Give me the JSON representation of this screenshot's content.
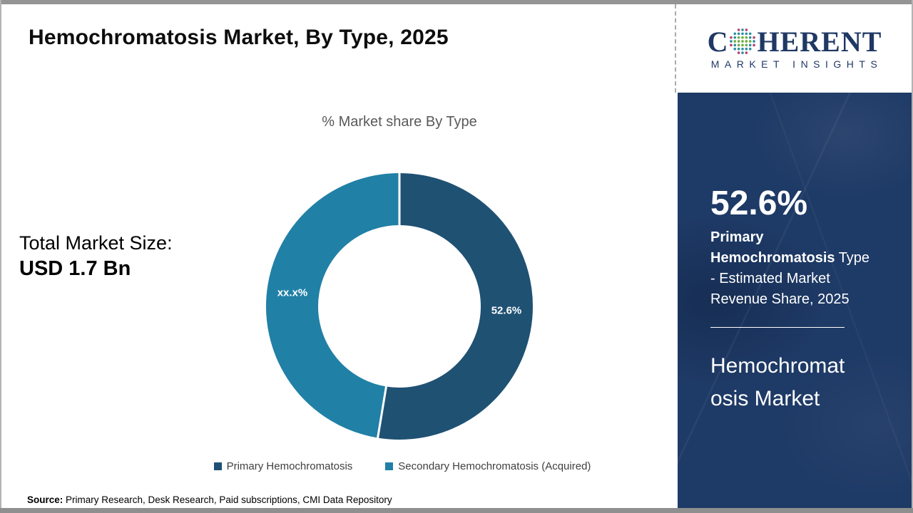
{
  "header": {
    "title": "Hemochromatosis Market, By Type, 2025",
    "logo": {
      "part1": "C",
      "part2": "HERENT",
      "subtitle": "MARKET INSIGHTS"
    }
  },
  "left_panel": {
    "total_label": "Total Market Size:",
    "total_value": "USD 1.7 Bn"
  },
  "chart_data": {
    "type": "pie",
    "variant": "donut",
    "title": "% Market share By Type",
    "start_angle_deg": 0,
    "direction": "clockwise",
    "legend_position": "bottom",
    "slices": [
      {
        "name": "Primary Hemochromatosis",
        "value": 52.6,
        "label": "52.6%",
        "color": "#1f5173"
      },
      {
        "name": "Secondary Hemochromatosis (Acquired)",
        "value": 47.4,
        "label": "xx.x%",
        "color": "#2180a6"
      }
    ]
  },
  "sidebar": {
    "stat_value": "52.6%",
    "stat_highlight": "Primary Hemochromatosis",
    "stat_rest": " Type - Estimated Market Revenue Share, 2025",
    "market_name": "Hemochromatosis Market",
    "background_color": "#1e3a66"
  },
  "footer": {
    "source_label": "Source:",
    "source_text": " Primary Research, Desk Research, Paid subscriptions, CMI Data Repository"
  },
  "colors": {
    "logo_navy": "#1f3864",
    "primary_slice": "#1f5173",
    "secondary_slice": "#2180a6",
    "sidebar_bg": "#1e3a66",
    "globe_teal": "#2e8fa3",
    "globe_green": "#6fae44",
    "globe_crimson": "#b5446e"
  }
}
